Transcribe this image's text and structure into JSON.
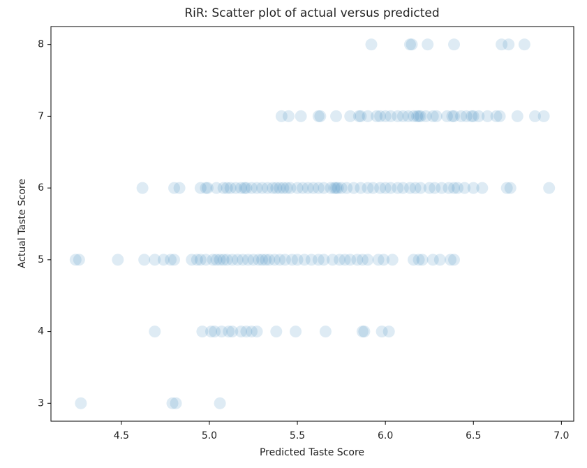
{
  "chart_data": {
    "type": "scatter",
    "title": "RiR: Scatter plot of actual versus predicted",
    "x_label": "Predicted Taste Score",
    "y_label": "Actual Taste Score",
    "color": "#1f77b4",
    "xlim": [
      4.1,
      7.07
    ],
    "ylim": [
      2.75,
      8.25
    ],
    "xticks": [
      4.5,
      {
        "value": 5,
        "label": "5.0"
      },
      5.5,
      {
        "value": 6,
        "label": "6.0"
      },
      6.5,
      {
        "value": 7,
        "label": "7.0"
      }
    ],
    "yticks": [
      3,
      4,
      5,
      6,
      7,
      8
    ],
    "x": [
      5.92,
      6.14,
      6.15,
      6.24,
      6.39,
      6.66,
      6.7,
      6.79,
      5.41,
      5.45,
      5.52,
      5.62,
      5.63,
      5.72,
      5.8,
      5.85,
      5.86,
      5.9,
      5.95,
      5.97,
      6.0,
      6.03,
      6.07,
      6.1,
      6.13,
      6.16,
      6.18,
      6.19,
      6.2,
      6.23,
      6.27,
      6.29,
      6.35,
      6.38,
      6.39,
      6.43,
      6.46,
      6.49,
      6.5,
      6.53,
      6.58,
      6.63,
      6.65,
      6.75,
      6.85,
      6.9,
      4.62,
      4.8,
      4.83,
      4.95,
      4.98,
      4.99,
      5.04,
      5.08,
      5.1,
      5.12,
      5.15,
      5.18,
      5.2,
      5.21,
      5.24,
      5.27,
      5.3,
      5.33,
      5.36,
      5.38,
      5.4,
      5.42,
      5.44,
      5.46,
      5.5,
      5.53,
      5.56,
      5.59,
      5.62,
      5.65,
      5.69,
      5.71,
      5.72,
      5.73,
      5.75,
      5.78,
      5.82,
      5.86,
      5.9,
      5.93,
      5.97,
      6.0,
      6.03,
      6.07,
      6.1,
      6.14,
      6.17,
      6.2,
      6.25,
      6.28,
      6.32,
      6.36,
      6.39,
      6.41,
      6.45,
      6.5,
      6.55,
      6.69,
      6.71,
      6.93,
      4.24,
      4.26,
      4.48,
      4.63,
      4.69,
      4.74,
      4.78,
      4.8,
      4.9,
      4.93,
      4.95,
      4.98,
      5.02,
      5.04,
      5.06,
      5.08,
      5.1,
      5.13,
      5.16,
      5.19,
      5.22,
      5.25,
      5.28,
      5.3,
      5.32,
      5.34,
      5.37,
      5.4,
      5.43,
      5.47,
      5.5,
      5.54,
      5.58,
      5.62,
      5.65,
      5.7,
      5.74,
      5.77,
      5.8,
      5.84,
      5.87,
      5.9,
      5.96,
      5.99,
      6.04,
      6.16,
      6.19,
      6.21,
      6.27,
      6.31,
      6.37,
      6.39,
      4.69,
      4.96,
      5.01,
      5.03,
      5.07,
      5.11,
      5.13,
      5.18,
      5.21,
      5.24,
      5.27,
      5.38,
      5.49,
      5.66,
      5.87,
      5.88,
      5.98,
      6.02,
      4.27,
      4.79,
      4.81,
      5.06
    ],
    "values": [
      8,
      8,
      8,
      8,
      8,
      8,
      8,
      8,
      7,
      7,
      7,
      7,
      7,
      7,
      7,
      7,
      7,
      7,
      7,
      7,
      7,
      7,
      7,
      7,
      7,
      7,
      7,
      7,
      7,
      7,
      7,
      7,
      7,
      7,
      7,
      7,
      7,
      7,
      7,
      7,
      7,
      7,
      7,
      7,
      7,
      7,
      6,
      6,
      6,
      6,
      6,
      6,
      6,
      6,
      6,
      6,
      6,
      6,
      6,
      6,
      6,
      6,
      6,
      6,
      6,
      6,
      6,
      6,
      6,
      6,
      6,
      6,
      6,
      6,
      6,
      6,
      6,
      6,
      6,
      6,
      6,
      6,
      6,
      6,
      6,
      6,
      6,
      6,
      6,
      6,
      6,
      6,
      6,
      6,
      6,
      6,
      6,
      6,
      6,
      6,
      6,
      6,
      6,
      6,
      6,
      6,
      5,
      5,
      5,
      5,
      5,
      5,
      5,
      5,
      5,
      5,
      5,
      5,
      5,
      5,
      5,
      5,
      5,
      5,
      5,
      5,
      5,
      5,
      5,
      5,
      5,
      5,
      5,
      5,
      5,
      5,
      5,
      5,
      5,
      5,
      5,
      5,
      5,
      5,
      5,
      5,
      5,
      5,
      5,
      5,
      5,
      5,
      5,
      5,
      5,
      5,
      5,
      5,
      4,
      4,
      4,
      4,
      4,
      4,
      4,
      4,
      4,
      4,
      4,
      4,
      4,
      4,
      4,
      4,
      4,
      4,
      3,
      3,
      3,
      3
    ]
  }
}
